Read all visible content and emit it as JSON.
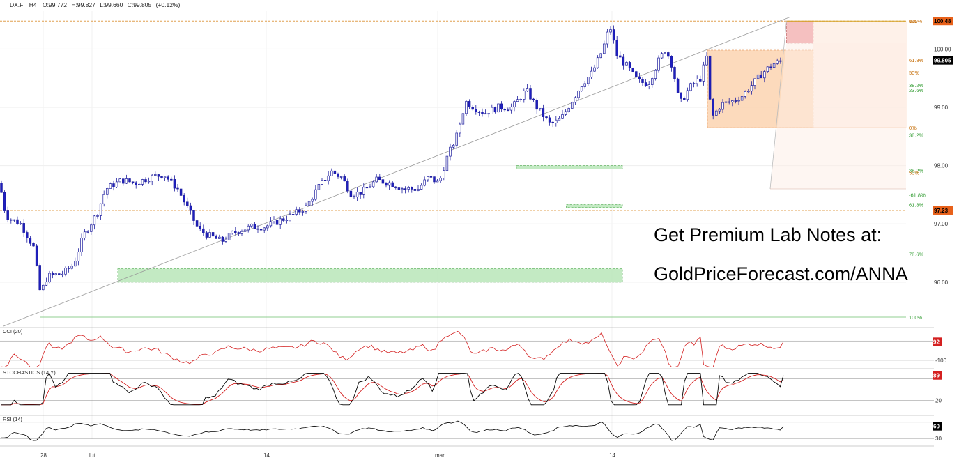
{
  "header": {
    "symbol": "DX.F",
    "interval": "H4",
    "open": "O:99.772",
    "high": "H:99.827",
    "low": "L:99.660",
    "close": "C:99.805",
    "change": "(+0.12%)"
  },
  "promo": {
    "line1": "Get Premium Lab Notes at:",
    "line2": "GoldPriceForecast.com/ANNA"
  },
  "colors": {
    "up": "#ffffff",
    "down": "#1f1fbf",
    "cci": "#d42020",
    "stoch_k": "#000000",
    "stoch_d": "#d42020",
    "rsi": "#000000",
    "fib_label": "#c46a00",
    "fib_green": "#2e9a2e",
    "current_price_bg": "#000000",
    "orange_marker_bg": "#e8611a"
  },
  "chart_data": {
    "type": "candlestick",
    "price_axis": {
      "ticks": [
        "100.00",
        "99.00",
        "98.00",
        "97.00",
        "96.00"
      ],
      "ylim": [
        95.4,
        100.65
      ]
    },
    "x_ticks": [
      "28",
      "lut",
      "14",
      "mar",
      "14"
    ],
    "markers": {
      "current_price": "99.805",
      "high_level": "100.48",
      "low_level": "97.23"
    },
    "fib_labels": [
      {
        "text": "100%",
        "price": 100.48
      },
      {
        "text": "0%",
        "price": 100.48
      },
      {
        "text": "61.8%",
        "price": 99.81
      },
      {
        "text": "50%",
        "price": 99.6
      },
      {
        "text": "38.2%",
        "price": 99.38
      },
      {
        "text": "23.6%",
        "price": 99.3
      },
      {
        "text": "0%",
        "price": 98.65
      },
      {
        "text": "38.2%",
        "price": 98.53
      },
      {
        "text": "38.2%",
        "price": 97.92
      },
      {
        "text": "50%",
        "price": 97.88
      },
      {
        "text": "-61.8%",
        "price": 97.5
      },
      {
        "text": "61.8%",
        "price": 97.33
      },
      {
        "text": "78.6%",
        "price": 96.48
      },
      {
        "text": "100%",
        "price": 95.4
      }
    ],
    "zones": [
      {
        "kind": "resistance",
        "from": 0.868,
        "to": 1.0,
        "p_low": 100.1,
        "p_high": 100.48
      },
      {
        "kind": "support",
        "from": 0.13,
        "to": 1.0,
        "p_low": 96.0,
        "p_high": 96.23
      },
      {
        "kind": "support",
        "from": 0.57,
        "to": 1.0,
        "p_low": 97.94,
        "p_high": 98.0
      },
      {
        "kind": "support",
        "from": 0.625,
        "to": 1.0,
        "p_low": 97.28,
        "p_high": 97.33
      }
    ],
    "key_prices": [
      {
        "t": 0,
        "p": 97.7
      },
      {
        "t": 0.005,
        "p": 97.3
      },
      {
        "t": 0.015,
        "p": 97.0
      },
      {
        "t": 0.04,
        "p": 96.7
      },
      {
        "t": 0.058,
        "p": 96.2
      },
      {
        "t": 0.07,
        "p": 95.7
      },
      {
        "t": 0.08,
        "p": 96.0
      },
      {
        "t": 0.1,
        "p": 96.2
      },
      {
        "t": 0.12,
        "p": 96.3
      },
      {
        "t": 0.135,
        "p": 96.9
      },
      {
        "t": 0.16,
        "p": 97.2
      },
      {
        "t": 0.19,
        "p": 97.7
      },
      {
        "t": 0.22,
        "p": 97.8
      },
      {
        "t": 0.245,
        "p": 97.85
      },
      {
        "t": 0.27,
        "p": 97.9
      },
      {
        "t": 0.29,
        "p": 97.3
      },
      {
        "t": 0.31,
        "p": 96.9
      },
      {
        "t": 0.34,
        "p": 96.7
      },
      {
        "t": 0.37,
        "p": 96.95
      },
      {
        "t": 0.41,
        "p": 97.0
      },
      {
        "t": 0.45,
        "p": 97.1
      },
      {
        "t": 0.49,
        "p": 97.2
      },
      {
        "t": 0.52,
        "p": 97.5
      },
      {
        "t": 0.55,
        "p": 97.95
      },
      {
        "t": 0.58,
        "p": 97.95
      },
      {
        "t": 0.61,
        "p": 97.5
      },
      {
        "t": 0.64,
        "p": 97.8
      },
      {
        "t": 0.67,
        "p": 97.75
      },
      {
        "t": 0.7,
        "p": 97.6
      },
      {
        "t": 0.72,
        "p": 97.8
      },
      {
        "t": 0.76,
        "p": 97.85
      },
      {
        "t": 0.78,
        "p": 98.0
      },
      {
        "t": 0.8,
        "p": 98.6
      },
      {
        "t": 0.83,
        "p": 99.1
      },
      {
        "t": 0.86,
        "p": 99.2
      },
      {
        "t": 0.9,
        "p": 99.1
      },
      {
        "t": 0.93,
        "p": 98.8
      },
      {
        "t": 0.96,
        "p": 99.1
      },
      {
        "t": 1.0,
        "p": 99.1
      }
    ],
    "indicators": {
      "cci": {
        "label": "CCI (20)",
        "ticks": [
          "-100"
        ],
        "last": "92",
        "ylim": [
          -180,
          210
        ]
      },
      "stochastics": {
        "label": "STOCHASTICS (14,Y)",
        "ticks": [
          "20"
        ],
        "last": "89",
        "ylim": [
          0,
          100
        ]
      },
      "rsi": {
        "label": "RSI (14)",
        "ticks": [
          "30"
        ],
        "last": "60",
        "ylim": [
          20,
          80
        ]
      }
    }
  }
}
